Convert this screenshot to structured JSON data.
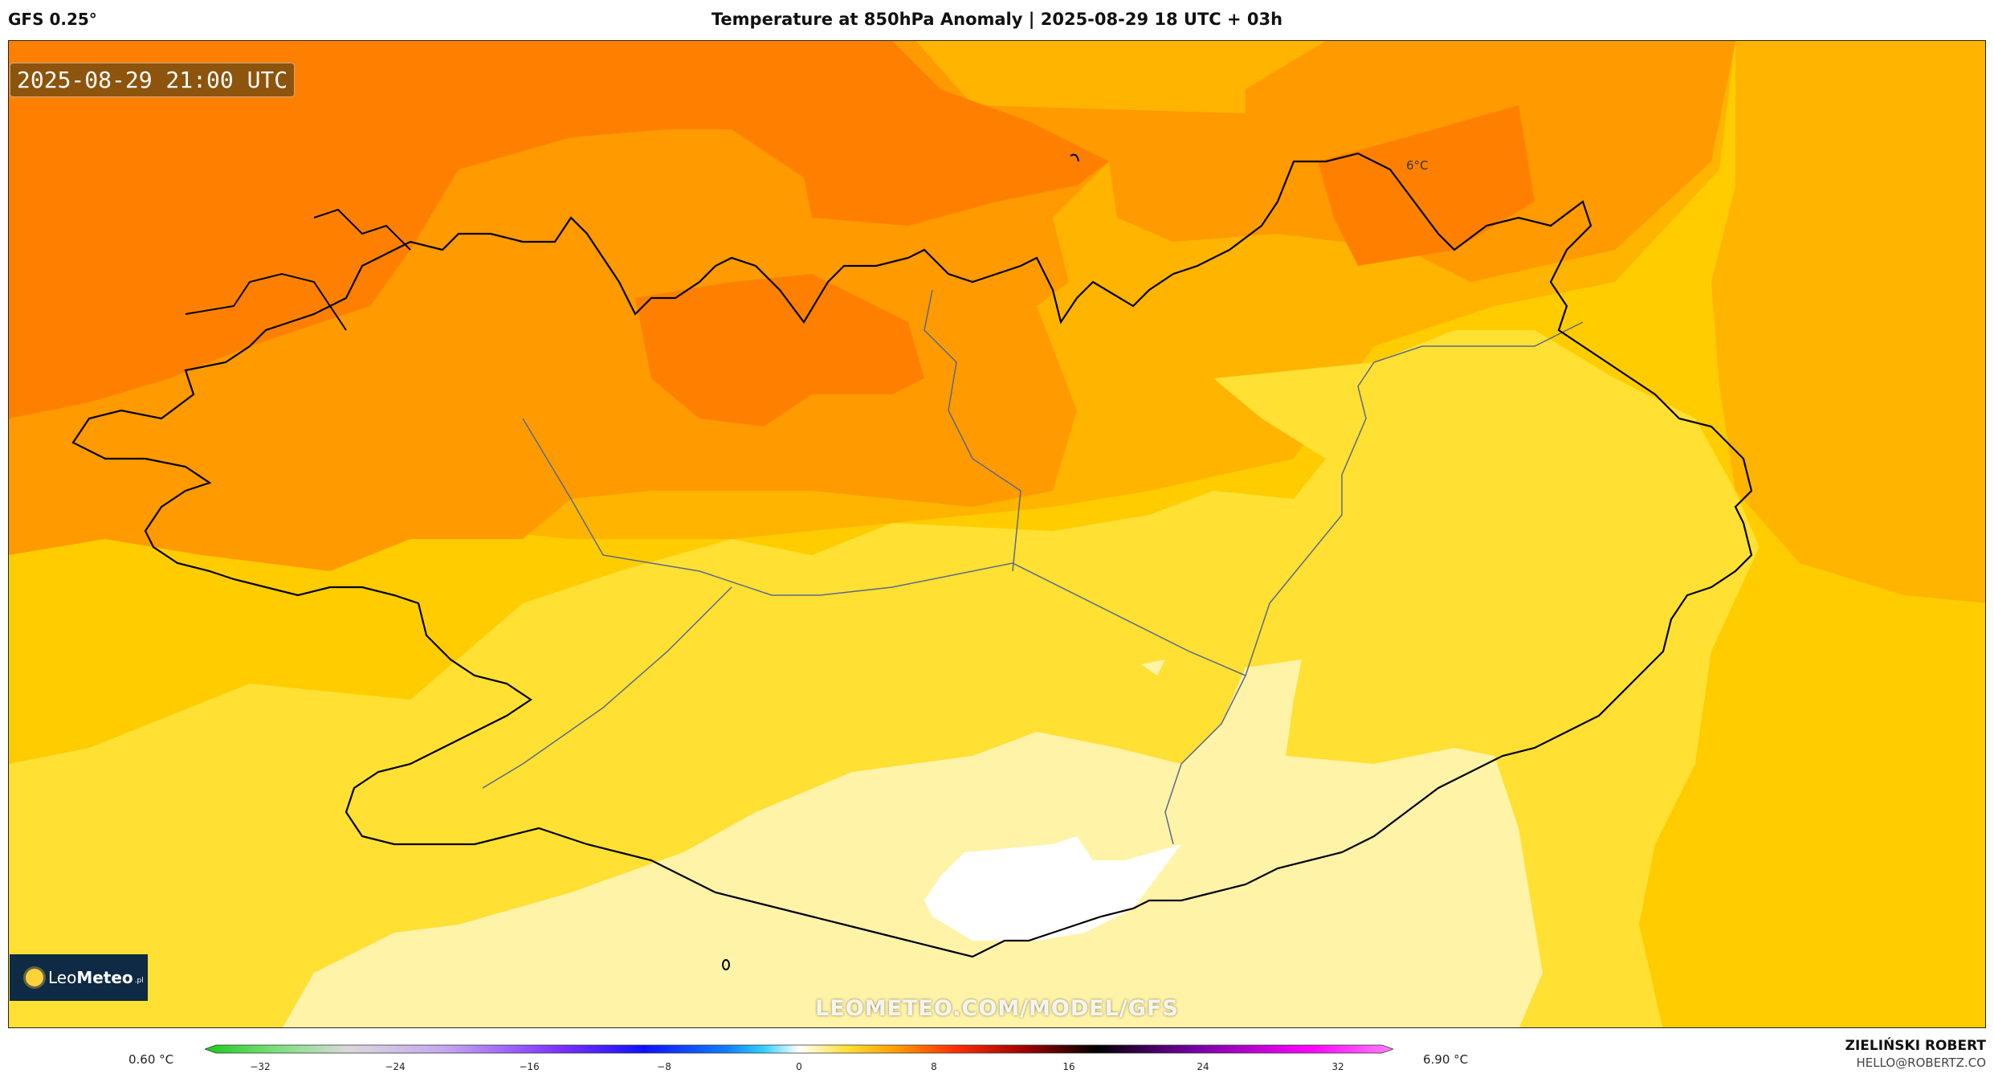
{
  "header": {
    "model": "GFS 0.25°",
    "title": "Temperature at 850hPa Anomaly | 2025-08-29 18 UTC + 03h"
  },
  "map": {
    "valid_time": "2025-08-29 21:00 UTC",
    "contour_label": "6°C",
    "watermark": "LEOMETEO.COM/MODEL/GFS",
    "logo": {
      "name": "LeoMeteo",
      "name_part1": "Leo",
      "name_part2": "Meteo",
      "suffix": ".pl"
    },
    "colors": {
      "band_dark_orange": "#ff8000",
      "band_orange": "#ff9a00",
      "band_amber": "#ffb400",
      "band_gold": "#ffcc00",
      "band_yellow": "#ffe033",
      "band_pale": "#fff3a8",
      "band_white": "#ffffff",
      "coastline": "#000000",
      "borders": "#5a6a8a"
    }
  },
  "legend": {
    "min_label": "0.60 °C",
    "max_label": "6.90 °C",
    "ticks": [
      "−32",
      "−24",
      "−16",
      "−8",
      "0",
      "8",
      "16",
      "24",
      "32"
    ]
  },
  "author": {
    "name": "ZIELIŃSKI ROBERT",
    "email": "HELLO@ROBERTZ.CO"
  }
}
